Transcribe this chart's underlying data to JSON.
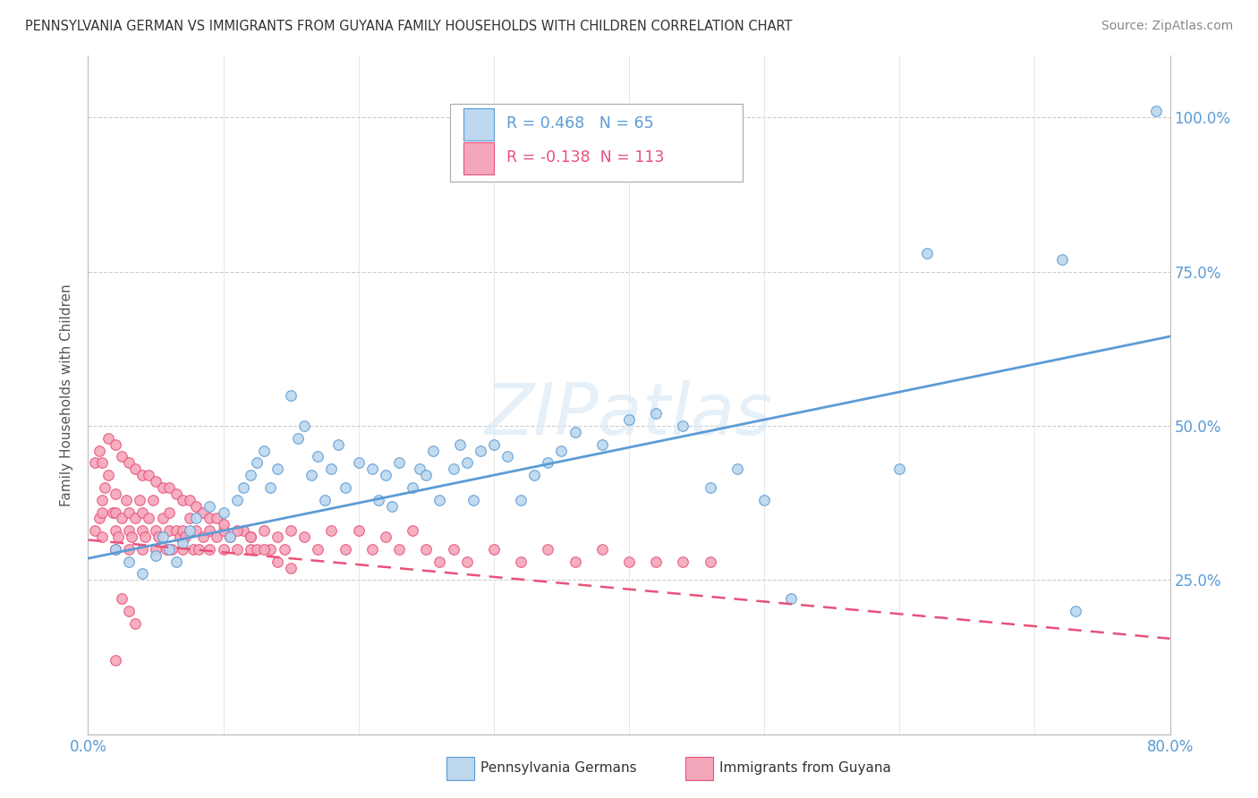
{
  "title": "PENNSYLVANIA GERMAN VS IMMIGRANTS FROM GUYANA FAMILY HOUSEHOLDS WITH CHILDREN CORRELATION CHART",
  "source": "Source: ZipAtlas.com",
  "ylabel": "Family Households with Children",
  "xlim": [
    0.0,
    0.8
  ],
  "ylim": [
    0.0,
    1.1
  ],
  "yticks": [
    0.0,
    0.25,
    0.5,
    0.75,
    1.0
  ],
  "xtick_labels": [
    "0.0%",
    "",
    "",
    "",
    "",
    "",
    "",
    "",
    "80.0%"
  ],
  "watermark": "ZIPatlas",
  "blue_color": "#5b9bd5",
  "blue_face": "#bdd7ee",
  "pink_color": "#e8527a",
  "pink_face": "#f4a7bb",
  "R_blue": 0.468,
  "N_blue": 65,
  "R_pink": -0.138,
  "N_pink": 113,
  "blue_line_start_x": 0.0,
  "blue_line_start_y": 0.285,
  "blue_line_end_x": 0.8,
  "blue_line_end_y": 0.645,
  "pink_line_start_x": 0.0,
  "pink_line_start_y": 0.315,
  "pink_line_end_x": 0.8,
  "pink_line_end_y": 0.155,
  "blue_x": [
    0.02,
    0.03,
    0.04,
    0.05,
    0.055,
    0.06,
    0.065,
    0.07,
    0.075,
    0.08,
    0.09,
    0.1,
    0.105,
    0.11,
    0.115,
    0.12,
    0.125,
    0.13,
    0.135,
    0.14,
    0.15,
    0.155,
    0.16,
    0.165,
    0.17,
    0.175,
    0.18,
    0.185,
    0.19,
    0.2,
    0.21,
    0.215,
    0.22,
    0.225,
    0.23,
    0.24,
    0.245,
    0.25,
    0.255,
    0.26,
    0.27,
    0.275,
    0.28,
    0.285,
    0.29,
    0.3,
    0.31,
    0.32,
    0.33,
    0.34,
    0.35,
    0.36,
    0.38,
    0.4,
    0.42,
    0.44,
    0.46,
    0.48,
    0.5,
    0.52,
    0.6,
    0.62,
    0.72,
    0.73,
    0.79
  ],
  "blue_y": [
    0.3,
    0.28,
    0.26,
    0.29,
    0.32,
    0.3,
    0.28,
    0.31,
    0.33,
    0.35,
    0.37,
    0.36,
    0.32,
    0.38,
    0.4,
    0.42,
    0.44,
    0.46,
    0.4,
    0.43,
    0.55,
    0.48,
    0.5,
    0.42,
    0.45,
    0.38,
    0.43,
    0.47,
    0.4,
    0.44,
    0.43,
    0.38,
    0.42,
    0.37,
    0.44,
    0.4,
    0.43,
    0.42,
    0.46,
    0.38,
    0.43,
    0.47,
    0.44,
    0.38,
    0.46,
    0.47,
    0.45,
    0.38,
    0.42,
    0.44,
    0.46,
    0.49,
    0.47,
    0.51,
    0.52,
    0.5,
    0.4,
    0.43,
    0.38,
    0.22,
    0.43,
    0.78,
    0.77,
    0.2,
    1.01
  ],
  "pink_x": [
    0.005,
    0.008,
    0.01,
    0.01,
    0.01,
    0.012,
    0.015,
    0.018,
    0.02,
    0.02,
    0.02,
    0.02,
    0.022,
    0.025,
    0.028,
    0.03,
    0.03,
    0.03,
    0.032,
    0.035,
    0.038,
    0.04,
    0.04,
    0.04,
    0.042,
    0.045,
    0.048,
    0.05,
    0.05,
    0.052,
    0.055,
    0.058,
    0.06,
    0.06,
    0.062,
    0.065,
    0.068,
    0.07,
    0.07,
    0.072,
    0.075,
    0.078,
    0.08,
    0.082,
    0.085,
    0.09,
    0.09,
    0.095,
    0.1,
    0.1,
    0.105,
    0.11,
    0.115,
    0.12,
    0.12,
    0.125,
    0.13,
    0.135,
    0.14,
    0.145,
    0.15,
    0.16,
    0.17,
    0.18,
    0.19,
    0.2,
    0.21,
    0.22,
    0.23,
    0.24,
    0.25,
    0.26,
    0.27,
    0.28,
    0.3,
    0.32,
    0.34,
    0.36,
    0.38,
    0.4,
    0.42,
    0.44,
    0.46,
    0.005,
    0.008,
    0.01,
    0.015,
    0.02,
    0.025,
    0.03,
    0.035,
    0.04,
    0.045,
    0.05,
    0.055,
    0.06,
    0.065,
    0.07,
    0.075,
    0.08,
    0.085,
    0.09,
    0.095,
    0.1,
    0.11,
    0.12,
    0.13,
    0.14,
    0.15,
    0.02,
    0.025,
    0.03,
    0.035
  ],
  "pink_y": [
    0.33,
    0.35,
    0.38,
    0.32,
    0.36,
    0.4,
    0.42,
    0.36,
    0.3,
    0.33,
    0.36,
    0.39,
    0.32,
    0.35,
    0.38,
    0.3,
    0.33,
    0.36,
    0.32,
    0.35,
    0.38,
    0.3,
    0.33,
    0.36,
    0.32,
    0.35,
    0.38,
    0.3,
    0.33,
    0.32,
    0.35,
    0.3,
    0.33,
    0.36,
    0.3,
    0.33,
    0.32,
    0.3,
    0.33,
    0.32,
    0.35,
    0.3,
    0.33,
    0.3,
    0.32,
    0.3,
    0.33,
    0.32,
    0.3,
    0.33,
    0.32,
    0.3,
    0.33,
    0.3,
    0.32,
    0.3,
    0.33,
    0.3,
    0.32,
    0.3,
    0.33,
    0.32,
    0.3,
    0.33,
    0.3,
    0.33,
    0.3,
    0.32,
    0.3,
    0.33,
    0.3,
    0.28,
    0.3,
    0.28,
    0.3,
    0.28,
    0.3,
    0.28,
    0.3,
    0.28,
    0.28,
    0.28,
    0.28,
    0.44,
    0.46,
    0.44,
    0.48,
    0.47,
    0.45,
    0.44,
    0.43,
    0.42,
    0.42,
    0.41,
    0.4,
    0.4,
    0.39,
    0.38,
    0.38,
    0.37,
    0.36,
    0.35,
    0.35,
    0.34,
    0.33,
    0.32,
    0.3,
    0.28,
    0.27,
    0.12,
    0.22,
    0.2,
    0.18
  ]
}
